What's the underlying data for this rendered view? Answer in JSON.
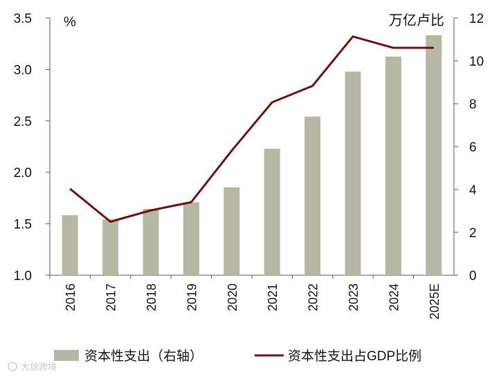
{
  "chart_data": {
    "type": "bar+line",
    "title": "",
    "categories": [
      "2016",
      "2017",
      "2018",
      "2019",
      "2020",
      "2021",
      "2022",
      "2023",
      "2024",
      "2025E"
    ],
    "series": [
      {
        "name": "资本性支出（右轴）",
        "type": "bar",
        "axis": "right",
        "color": "#b7b8a4",
        "values": [
          2.8,
          2.6,
          3.1,
          3.4,
          4.1,
          5.9,
          7.4,
          9.5,
          10.2,
          11.2
        ]
      },
      {
        "name": "资本性支出占GDP比例",
        "type": "line",
        "axis": "left",
        "color": "#6b0f10",
        "values": [
          1.84,
          1.52,
          1.63,
          1.71,
          2.21,
          2.68,
          2.84,
          3.32,
          3.21,
          3.21
        ]
      }
    ],
    "left_axis": {
      "unit_label": "%",
      "range": [
        1.0,
        3.5
      ],
      "ticks": [
        "1.0",
        "1.5",
        "2.0",
        "2.5",
        "3.0",
        "3.5"
      ]
    },
    "right_axis": {
      "unit_label": "万亿卢比",
      "range": [
        0,
        12
      ],
      "ticks": [
        "0",
        "2",
        "4",
        "6",
        "8",
        "10",
        "12"
      ]
    },
    "legend": {
      "placement": "bottom"
    }
  },
  "watermark": "大放跨境"
}
